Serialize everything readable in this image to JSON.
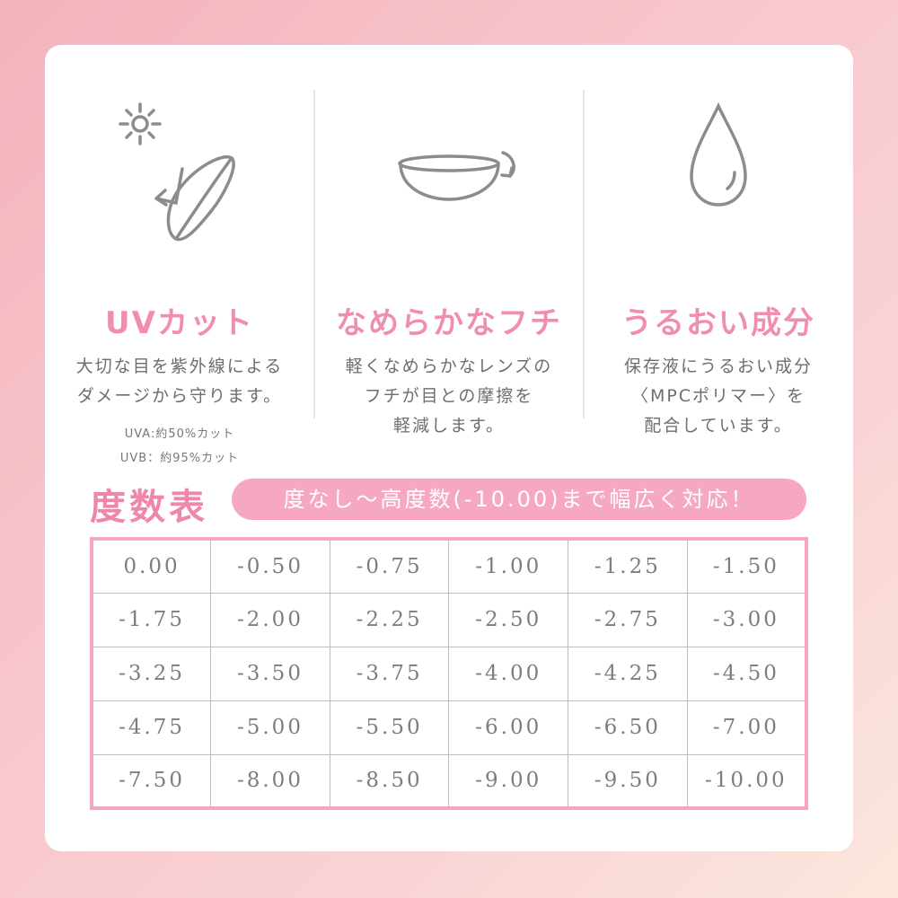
{
  "features": [
    {
      "icon": "uv-sun-lens-icon",
      "title": "UVカット",
      "desc": [
        "大切な目を紫外線によるダメージから守ります。"
      ],
      "notes": [
        "UVA:約50%カット",
        "UVB：約95%カット"
      ]
    },
    {
      "icon": "lens-rotate-icon",
      "title": "なめらかなフチ",
      "desc": [
        "軽くなめらかなレンズのフチが目との摩擦を軽減します。"
      ]
    },
    {
      "icon": "water-drop-icon",
      "title": "うるおい成分",
      "desc": [
        "保存液にうるおい成分〈MPCポリマー〉を配合しています。"
      ]
    }
  ],
  "feature_desc_lines": [
    [
      "大切な目を紫外線による",
      "ダメージから守ります。"
    ],
    [
      "軽くなめらかなレンズの",
      "フチが目との摩擦を",
      "軽減します。"
    ],
    [
      "保存液にうるおい成分",
      "〈MPCポリマー〉を",
      "配合しています。"
    ]
  ],
  "power_table": {
    "title": "度数表",
    "tagline": "度なし〜高度数(-10.00)まで幅広く対応！",
    "rows": [
      [
        "0.00",
        "-0.50",
        "-0.75",
        "-1.00",
        "-1.25",
        "-1.50"
      ],
      [
        "-1.75",
        "-2.00",
        "-2.25",
        "-2.50",
        "-2.75",
        "-3.00"
      ],
      [
        "-3.25",
        "-3.50",
        "-3.75",
        "-4.00",
        "-4.25",
        "-4.50"
      ],
      [
        "-4.75",
        "-5.00",
        "-5.50",
        "-6.00",
        "-6.50",
        "-7.00"
      ],
      [
        "-7.50",
        "-8.00",
        "-8.50",
        "-9.00",
        "-9.50",
        "-10.00"
      ]
    ]
  },
  "colors": {
    "accent": "#f28db2",
    "table_border": "#f4a6bf",
    "pill": "#f6a8c3",
    "text": "#6e6e6e"
  }
}
